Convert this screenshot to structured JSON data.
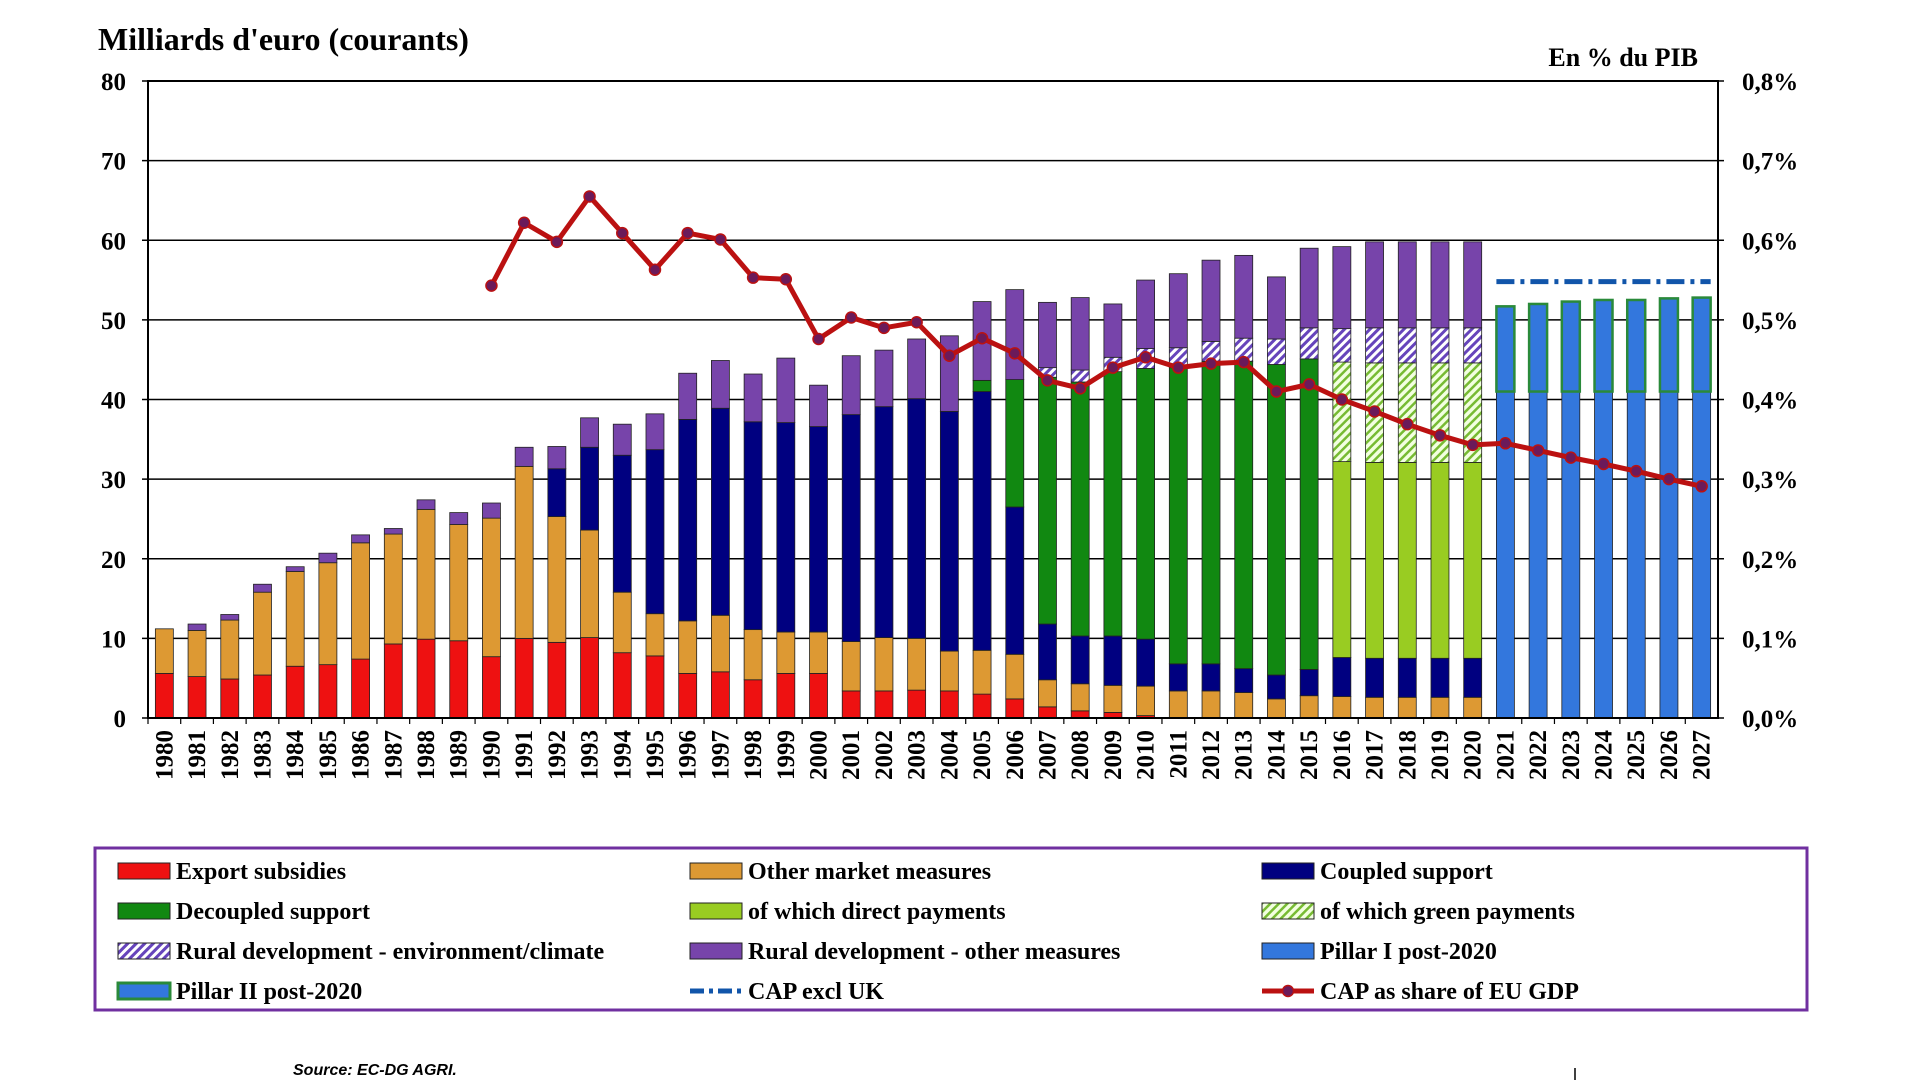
{
  "chart_data": {
    "type": "bar",
    "title": "Milliards d'euro (courants)",
    "right_axis_title": "En % du PIB",
    "source": "Source: EC-DG AGRI.",
    "ylim": [
      0,
      80
    ],
    "y_ticks": [
      "0",
      "10",
      "20",
      "30",
      "40",
      "50",
      "60",
      "70",
      "80"
    ],
    "y2lim": [
      0,
      0.8
    ],
    "y2_ticks": [
      "0,0%",
      "0,1%",
      "0,2%",
      "0,3%",
      "0,4%",
      "0,5%",
      "0,6%",
      "0,7%",
      "0,8%"
    ],
    "categories": [
      "1980",
      "1981",
      "1982",
      "1983",
      "1984",
      "1985",
      "1986",
      "1987",
      "1988",
      "1989",
      "1990",
      "1991",
      "1992",
      "1993",
      "1994",
      "1995",
      "1996",
      "1997",
      "1998",
      "1999",
      "2000",
      "2001",
      "2002",
      "2003",
      "2004",
      "2005",
      "2006",
      "2007",
      "2008",
      "2009",
      "2010",
      "2011",
      "2012",
      "2013",
      "2014",
      "2015",
      "2016",
      "2017",
      "2018",
      "2019",
      "2020",
      "2021",
      "2022",
      "2023",
      "2024",
      "2025",
      "2026",
      "2027"
    ],
    "series": [
      {
        "name": "Export subsidies",
        "color": "#ee1111",
        "values": [
          5.6,
          5.2,
          4.9,
          5.4,
          6.5,
          6.7,
          7.4,
          9.3,
          9.9,
          9.7,
          7.7,
          10.0,
          9.5,
          10.1,
          8.2,
          7.8,
          5.6,
          5.8,
          4.8,
          5.6,
          5.6,
          3.4,
          3.4,
          3.5,
          3.4,
          3.0,
          2.4,
          1.4,
          0.9,
          0.7,
          0.3,
          0,
          0,
          0,
          0,
          0,
          0,
          0,
          0,
          0,
          0,
          0,
          0,
          0,
          0,
          0,
          0,
          0
        ]
      },
      {
        "name": "Other market measures",
        "color": "#dd9933",
        "values": [
          5.6,
          5.8,
          7.4,
          10.4,
          11.9,
          12.8,
          14.6,
          13.8,
          16.3,
          14.6,
          17.4,
          21.6,
          15.8,
          13.5,
          7.6,
          5.3,
          6.6,
          7.1,
          6.3,
          5.2,
          5.2,
          6.2,
          6.7,
          6.5,
          5.0,
          5.5,
          5.6,
          3.4,
          3.4,
          3.4,
          3.7,
          3.4,
          3.4,
          3.2,
          2.4,
          2.8,
          2.7,
          2.6,
          2.6,
          2.6,
          2.6,
          0,
          0,
          0,
          0,
          0,
          0,
          0
        ]
      },
      {
        "name": "Coupled support",
        "color": "#000080",
        "values": [
          0,
          0,
          0,
          0,
          0,
          0,
          0,
          0,
          0,
          0,
          0,
          0,
          6.0,
          10.4,
          17.2,
          20.6,
          25.3,
          26.0,
          26.1,
          26.3,
          25.8,
          28.5,
          29.0,
          30.1,
          30.1,
          32.5,
          18.5,
          7.0,
          6.0,
          6.2,
          5.9,
          3.4,
          3.4,
          3.0,
          3.0,
          3.3,
          4.9,
          4.9,
          4.9,
          4.9,
          4.9,
          0,
          0,
          0,
          0,
          0,
          0,
          0
        ]
      },
      {
        "name": "Decoupled support",
        "color": "#118811",
        "values": [
          0,
          0,
          0,
          0,
          0,
          0,
          0,
          0,
          0,
          0,
          0,
          0,
          0,
          0,
          0,
          0,
          0,
          0,
          0,
          0,
          0,
          0,
          0,
          0,
          0,
          1.4,
          16.0,
          31.0,
          31.9,
          33.2,
          34.0,
          37.2,
          38.0,
          38.6,
          39.0,
          39.0,
          0,
          0,
          0,
          0,
          0,
          0,
          0,
          0,
          0,
          0,
          0,
          0
        ]
      },
      {
        "name": "of which direct payments",
        "color": "#99cc22",
        "values": [
          0,
          0,
          0,
          0,
          0,
          0,
          0,
          0,
          0,
          0,
          0,
          0,
          0,
          0,
          0,
          0,
          0,
          0,
          0,
          0,
          0,
          0,
          0,
          0,
          0,
          0,
          0,
          0,
          0,
          0,
          0,
          0,
          0,
          0,
          0,
          0,
          24.6,
          24.6,
          24.6,
          24.6,
          24.6,
          0,
          0,
          0,
          0,
          0,
          0,
          0
        ]
      },
      {
        "name": "of which green payments",
        "color": "#ccee99",
        "values": [
          0,
          0,
          0,
          0,
          0,
          0,
          0,
          0,
          0,
          0,
          0,
          0,
          0,
          0,
          0,
          0,
          0,
          0,
          0,
          0,
          0,
          0,
          0,
          0,
          0,
          0,
          0,
          0,
          0,
          0,
          0,
          0,
          0,
          0,
          0,
          0,
          12.5,
          12.5,
          12.5,
          12.5,
          12.5,
          0,
          0,
          0,
          0,
          0,
          0,
          0
        ]
      },
      {
        "name": "Rural development - environment/climate",
        "color": "#ccbbee",
        "values": [
          0,
          0,
          0,
          0,
          0,
          0,
          0,
          0,
          0,
          0,
          0,
          0,
          0,
          0,
          0,
          0,
          0,
          0,
          0,
          0,
          0,
          0,
          0,
          0,
          0,
          0,
          0,
          1.2,
          1.5,
          1.8,
          2.5,
          2.5,
          2.5,
          2.9,
          3.2,
          3.9,
          4.2,
          4.4,
          4.4,
          4.4,
          4.4,
          0,
          0,
          0,
          0,
          0,
          0,
          0
        ]
      },
      {
        "name": "Rural development - other measures",
        "color": "#7744aa",
        "values": [
          0,
          0.8,
          0.7,
          1.0,
          0.6,
          1.2,
          1.0,
          0.7,
          1.2,
          1.5,
          1.9,
          2.4,
          2.8,
          3.7,
          3.9,
          4.5,
          5.8,
          6.0,
          6.0,
          8.1,
          5.2,
          7.4,
          7.1,
          7.5,
          9.5,
          9.9,
          11.3,
          8.2,
          9.1,
          6.7,
          8.6,
          9.3,
          10.2,
          10.4,
          7.8,
          10.0,
          10.3,
          10.8,
          10.8,
          10.8,
          10.8,
          0,
          0,
          0,
          0,
          0,
          0,
          0
        ]
      },
      {
        "name": "Pillar I post-2020",
        "color": "#3377dd",
        "values": [
          0,
          0,
          0,
          0,
          0,
          0,
          0,
          0,
          0,
          0,
          0,
          0,
          0,
          0,
          0,
          0,
          0,
          0,
          0,
          0,
          0,
          0,
          0,
          0,
          0,
          0,
          0,
          0,
          0,
          0,
          0,
          0,
          0,
          0,
          0,
          0,
          0,
          0,
          0,
          0,
          0,
          41.0,
          41.0,
          41.0,
          41.0,
          41.0,
          41.0,
          41.0
        ]
      },
      {
        "name": "Pillar II post-2020",
        "color": "#3377dd",
        "values": [
          0,
          0,
          0,
          0,
          0,
          0,
          0,
          0,
          0,
          0,
          0,
          0,
          0,
          0,
          0,
          0,
          0,
          0,
          0,
          0,
          0,
          0,
          0,
          0,
          0,
          0,
          0,
          0,
          0,
          0,
          0,
          0,
          0,
          0,
          0,
          0,
          0,
          0,
          0,
          0,
          0,
          10.7,
          11.0,
          11.3,
          11.5,
          11.5,
          11.7,
          11.8
        ]
      }
    ],
    "line_series": [
      {
        "name": "CAP excl UK",
        "color": "#1155aa",
        "axis": "left",
        "x": [
          "2021",
          "2022",
          "2023",
          "2024",
          "2025",
          "2026",
          "2027"
        ],
        "values": [
          54.8,
          54.8,
          54.8,
          54.8,
          54.8,
          54.8,
          54.8
        ]
      },
      {
        "name": "CAP as share of EU GDP",
        "color": "#bb1111",
        "axis": "right",
        "x": [
          "1990",
          "1991",
          "1992",
          "1993",
          "1994",
          "1995",
          "1996",
          "1997",
          "1998",
          "1999",
          "2000",
          "2001",
          "2002",
          "2003",
          "2004",
          "2005",
          "2006",
          "2007",
          "2008",
          "2009",
          "2010",
          "2011",
          "2012",
          "2013",
          "2014",
          "2015",
          "2016",
          "2017",
          "2018",
          "2019",
          "2020",
          "2021",
          "2022",
          "2023",
          "2024",
          "2025",
          "2026",
          "2027"
        ],
        "values": [
          0.543,
          0.622,
          0.598,
          0.655,
          0.609,
          0.563,
          0.609,
          0.601,
          0.553,
          0.551,
          0.476,
          0.503,
          0.49,
          0.497,
          0.455,
          0.477,
          0.458,
          0.424,
          0.414,
          0.44,
          0.453,
          0.44,
          0.445,
          0.447,
          0.41,
          0.419,
          0.4,
          0.385,
          0.369,
          0.355,
          0.343,
          0.345,
          0.336,
          0.327,
          0.319,
          0.31,
          0.3,
          0.291
        ]
      }
    ],
    "legend": [
      {
        "label": "Export subsidies",
        "color": "#ee1111",
        "kind": "box"
      },
      {
        "label": "Other market measures",
        "color": "#dd9933",
        "kind": "box"
      },
      {
        "label": "Coupled support",
        "color": "#000080",
        "kind": "box"
      },
      {
        "label": "Decoupled support",
        "color": "#118811",
        "kind": "box"
      },
      {
        "label": "of which direct payments",
        "color": "#99cc22",
        "kind": "box"
      },
      {
        "label": "of which green payments",
        "color": "#ccee99",
        "kind": "hatch-green"
      },
      {
        "label": "Rural development - environment/climate",
        "color": "#ccbbee",
        "kind": "hatch-purple"
      },
      {
        "label": "Rural development - other measures",
        "color": "#7744aa",
        "kind": "box"
      },
      {
        "label": "Pillar I post-2020",
        "color": "#3377dd",
        "kind": "box"
      },
      {
        "label": "Pillar II post-2020",
        "color": "#3377dd",
        "kind": "box-green-edge"
      },
      {
        "label": "CAP excl UK",
        "color": "#1155aa",
        "kind": "dashdot"
      },
      {
        "label": "CAP as share of EU GDP",
        "color": "#bb1111",
        "kind": "line-marker"
      }
    ],
    "legend_border_color": "#7030a0",
    "grid": true
  }
}
